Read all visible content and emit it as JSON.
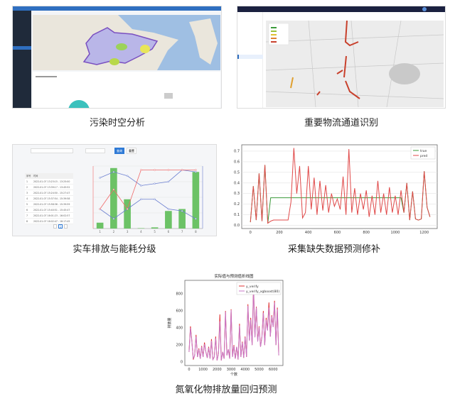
{
  "captions": {
    "p1": "污染时空分析",
    "p2": "重要物流通道识别",
    "p3": "实车排放与能耗分级",
    "p4": "采集缺失数据预测修补",
    "p5": "氮氧化物排放量回归预测"
  },
  "colors": {
    "ui_blue": "#2f6fc0",
    "sidebar_dark": "#1f2a3a",
    "nav_dark": "#1b2140",
    "sea": "#9fbfe3",
    "region_outline": "#7a4fc0",
    "pie_teal": "#3cc1bd",
    "road_red": "#c8402c",
    "bar_green": "#6cc266"
  },
  "p3": {
    "buttons": {
      "query": "查询",
      "reset": "重置"
    },
    "table": {
      "headers": [
        "序号",
        "时间"
      ],
      "rows": [
        [
          "1",
          "2022-01-07 13:23:15 - 13:25:00"
        ],
        [
          "2",
          "2022-01-07 13:39:17 - 13:45:52"
        ],
        [
          "3",
          "2022-01-07 15:24:50 - 15:27:47"
        ],
        [
          "4",
          "2022-01-07 15:37:54 - 15:39:58"
        ],
        [
          "5",
          "2022-01-07 15:58:36 - 15:39:59"
        ],
        [
          "6",
          "2022-01-07 15:40:51 - 15:45:47"
        ],
        [
          "7",
          "2022-01-07 16:01:23 - 16:02:57"
        ],
        [
          "8",
          "2022-01-07 16:02:47 - 16:17:45"
        ]
      ],
      "page": "1"
    }
  },
  "chart_data": [
    {
      "type": "bar",
      "categories": [
        "1",
        "2",
        "3",
        "4",
        "5",
        "6",
        "7",
        "8"
      ],
      "bars": [
        0.3,
        3.1,
        1.5,
        0.02,
        0.06,
        0.9,
        1.0,
        2.9
      ],
      "lines": [
        {
          "color": "#6b7fd0",
          "values": [
            2.6,
            2.9,
            2.7,
            2.2,
            2.3,
            2.4,
            3.0,
            2.9
          ]
        },
        {
          "color": "#6b7fd0",
          "values": [
            1.0,
            0.5,
            1.0,
            1.5,
            1.5,
            1.0,
            0.9,
            0.5
          ]
        },
        {
          "color": "#f06a6a",
          "values": [
            1.0,
            2.0,
            1.0,
            3.0,
            3.0,
            3.0,
            3.0,
            3.0
          ]
        }
      ],
      "ylim": [
        0,
        3.2
      ],
      "grid": true
    },
    {
      "type": "line",
      "x": [
        0,
        20,
        40,
        60,
        80,
        100,
        120,
        140,
        160,
        180,
        200,
        220,
        240,
        260,
        280,
        300,
        320,
        340,
        360,
        380,
        400,
        420,
        440,
        460,
        480,
        500,
        520,
        540,
        560,
        580,
        600,
        620,
        640,
        660,
        680,
        700,
        720,
        740,
        760,
        780,
        800,
        820,
        840,
        860,
        880,
        900,
        920,
        940,
        960,
        980,
        1000,
        1020,
        1040,
        1060,
        1080,
        1100,
        1120,
        1140,
        1160,
        1180,
        1200,
        1220,
        1240
      ],
      "series": [
        {
          "name": "true",
          "color": "#3a9a3a",
          "values": [
            0.03,
            0.37,
            0.05,
            0.49,
            0.04,
            0.57,
            0.02,
            0.26,
            0.26,
            0.26,
            0.26,
            0.26,
            0.26,
            0.26,
            0.26,
            0.26,
            0.26,
            0.26,
            0.26,
            0.26,
            0.26,
            0.26,
            0.26,
            0.26,
            0.26,
            0.26,
            0.26,
            0.26,
            0.26,
            0.26,
            0.26,
            0.26,
            0.26,
            0.26,
            0.26,
            0.26,
            0.26,
            0.26,
            0.26,
            0.26,
            0.26,
            0.26,
            0.26,
            0.26,
            0.26,
            0.26,
            0.26,
            0.26,
            0.26,
            0.26,
            0.26,
            0.26,
            0.26,
            0.12,
            0.4,
            0.05,
            0.32,
            0.06,
            0.05,
            0.06,
            0.51,
            0.17,
            0.08
          ]
        },
        {
          "name": "pred",
          "color": "#e04848",
          "values": [
            0.03,
            0.37,
            0.05,
            0.49,
            0.04,
            0.57,
            0.02,
            0.04,
            0.05,
            0.05,
            0.05,
            0.05,
            0.05,
            0.05,
            0.22,
            0.73,
            0.3,
            0.56,
            0.07,
            0.12,
            0.56,
            0.15,
            0.45,
            0.1,
            0.42,
            0.14,
            0.38,
            0.12,
            0.3,
            0.18,
            0.25,
            0.15,
            0.46,
            0.1,
            0.72,
            0.12,
            0.35,
            0.1,
            0.3,
            0.15,
            0.33,
            0.08,
            0.28,
            0.1,
            0.42,
            0.12,
            0.3,
            0.1,
            0.36,
            0.12,
            0.28,
            0.1,
            0.33,
            0.12,
            0.4,
            0.05,
            0.32,
            0.06,
            0.05,
            0.06,
            0.51,
            0.17,
            0.08
          ]
        }
      ],
      "xlim": [
        -60,
        1290
      ],
      "ylim": [
        -0.03,
        0.76
      ],
      "xticks": [
        "0",
        "200",
        "400",
        "600",
        "800",
        "1000",
        "1200"
      ],
      "yticks": [
        "0.0",
        "0.1",
        "0.2",
        "0.3",
        "0.4",
        "0.5",
        "0.6",
        "0.7"
      ],
      "grid": true,
      "legend": "top-right"
    },
    {
      "type": "line",
      "title": "实际值与预测值折线图",
      "xlabel": "个数",
      "ylabel": "排放量",
      "x": [
        0,
        100,
        200,
        300,
        400,
        500,
        600,
        700,
        800,
        900,
        1000,
        1100,
        1200,
        1300,
        1400,
        1500,
        1600,
        1700,
        1800,
        1900,
        2000,
        2100,
        2200,
        2300,
        2400,
        2500,
        2600,
        2700,
        2800,
        2900,
        3000,
        3100,
        3200,
        3300,
        3400,
        3500,
        3600,
        3700,
        3800,
        3900,
        4000,
        4100,
        4200,
        4300,
        4400,
        4500,
        4600,
        4700,
        4800,
        4900,
        5000,
        5100,
        5200,
        5300,
        5400,
        5500,
        5600,
        5700,
        5800,
        5900,
        6000,
        6100,
        6200,
        6300,
        6400
      ],
      "series": [
        {
          "name": "y_verify",
          "color": "#e03030",
          "values": [
            120,
            420,
            250,
            30,
            80,
            320,
            60,
            160,
            40,
            190,
            60,
            230,
            120,
            50,
            180,
            40,
            270,
            30,
            60,
            300,
            20,
            100,
            560,
            20,
            120,
            40,
            600,
            80,
            150,
            40,
            620,
            60,
            200,
            40,
            180,
            30,
            450,
            60,
            240,
            50,
            300,
            60,
            680,
            260,
            520,
            200,
            900,
            300,
            650,
            250,
            420,
            180,
            300,
            600,
            200,
            520,
            380,
            700,
            300,
            550,
            420,
            720,
            200,
            640,
            80
          ]
        },
        {
          "name": "y_verify_xgboost(80)",
          "color": "#c878c8",
          "values": [
            120,
            400,
            240,
            40,
            80,
            300,
            60,
            150,
            40,
            180,
            60,
            210,
            120,
            50,
            170,
            40,
            250,
            30,
            60,
            280,
            20,
            100,
            480,
            20,
            120,
            40,
            590,
            80,
            150,
            40,
            610,
            60,
            190,
            40,
            180,
            30,
            430,
            60,
            230,
            50,
            290,
            60,
            660,
            250,
            500,
            200,
            860,
            290,
            640,
            240,
            410,
            180,
            290,
            580,
            200,
            500,
            370,
            640,
            300,
            540,
            410,
            700,
            200,
            620,
            80
          ]
        }
      ],
      "xlim": [
        -300,
        6700
      ],
      "ylim": [
        -40,
        960
      ],
      "xticks": [
        "0",
        "1000",
        "2000",
        "3000",
        "4000",
        "5000",
        "6000"
      ],
      "yticks": [
        "0",
        "200",
        "400",
        "600",
        "800"
      ],
      "legend": "top-right"
    }
  ]
}
